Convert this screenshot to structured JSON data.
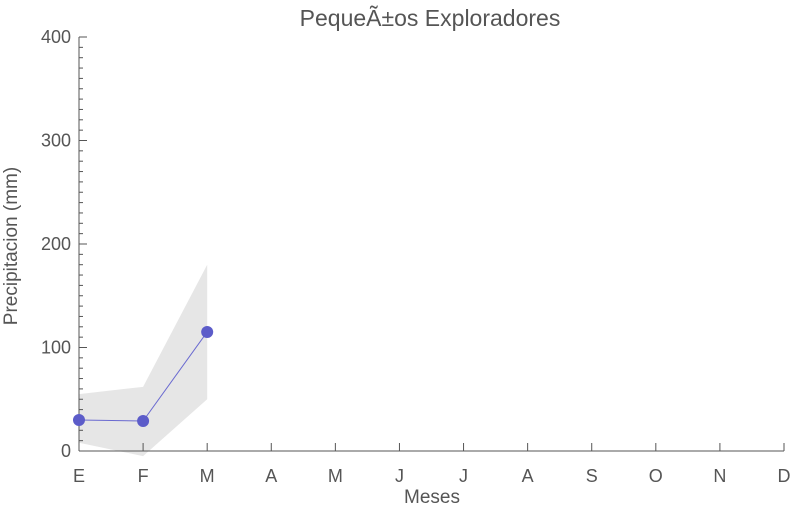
{
  "chart_data": {
    "type": "line",
    "title": "PequeÃ±os Exploradores",
    "xlabel": "Meses",
    "ylabel": "Precipitacion (mm)",
    "categories": [
      "E",
      "F",
      "M",
      "A",
      "M",
      "J",
      "J",
      "A",
      "S",
      "O",
      "N",
      "D"
    ],
    "ylim": [
      0,
      400
    ],
    "y_ticks": [
      0,
      100,
      200,
      300,
      400
    ],
    "grid": false,
    "series": [
      {
        "values": [
          30,
          29,
          115,
          null,
          null,
          null,
          null,
          null,
          null,
          null,
          null,
          null
        ],
        "band_upper": [
          55,
          62,
          180,
          null,
          null,
          null,
          null,
          null,
          null,
          null,
          null,
          null
        ],
        "band_lower": [
          8,
          -5,
          50,
          null,
          null,
          null,
          null,
          null,
          null,
          null,
          null,
          null
        ]
      }
    ],
    "colors": {
      "line": "#6a6ad0",
      "marker": "#5c5cc9",
      "band": "#e6e6e6",
      "axis": "#555555",
      "text": "#555555"
    }
  }
}
